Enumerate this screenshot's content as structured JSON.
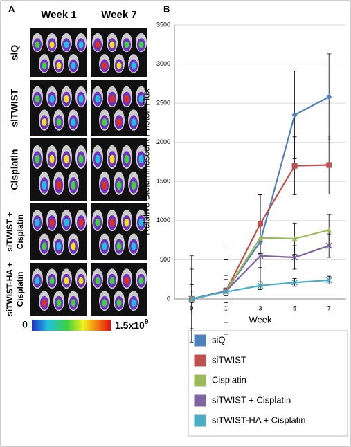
{
  "panel_a": {
    "panel_label": "A",
    "columns": [
      "Week 1",
      "Week 7"
    ],
    "rows": [
      {
        "label": "siQ"
      },
      {
        "label": "siTWIST"
      },
      {
        "label": "Cisplatin"
      },
      {
        "label": "siTWIST +",
        "label2": "Cisplatin"
      },
      {
        "label": "siTWIST-HA +",
        "label2": "Cisplatin"
      }
    ],
    "colorbar": {
      "min_label": "0",
      "max_label": "1.5x10",
      "max_exponent": "9"
    }
  },
  "chart_data": {
    "type": "line",
    "panel_label": "B",
    "x_label": "Week",
    "y_label": "Relative Bioluminescent Photon Flux",
    "categories": [
      "0",
      "1",
      "3",
      "5",
      "7"
    ],
    "ylim": [
      0,
      3500
    ],
    "yticks": [
      0,
      500,
      1000,
      1500,
      2000,
      2500,
      3000,
      3500
    ],
    "grid": true,
    "series": [
      {
        "name": "siQ",
        "color": "#4f81bd",
        "marker": "diamond",
        "values": [
          0,
          100,
          730,
          2350,
          2580
        ],
        "errors": [
          550,
          550,
          600,
          560,
          550
        ]
      },
      {
        "name": "siTWIST",
        "color": "#c0504d",
        "marker": "square",
        "values": [
          0,
          100,
          960,
          1700,
          1710
        ],
        "errors": [
          380,
          400,
          370,
          370,
          370
        ]
      },
      {
        "name": "Cisplatin",
        "color": "#9bbb59",
        "marker": "triangle",
        "values": [
          0,
          100,
          780,
          770,
          880
        ],
        "errors": [
          180,
          200,
          200,
          200,
          200
        ]
      },
      {
        "name": "siTWIST + Cisplatin",
        "color": "#8064a2",
        "marker": "cross",
        "values": [
          0,
          100,
          550,
          530,
          680
        ],
        "errors": [
          100,
          150,
          150,
          150,
          150
        ]
      },
      {
        "name": "siTWIST-HA + Cisplatin",
        "color": "#4bacc6",
        "marker": "cross",
        "values": [
          0,
          90,
          170,
          210,
          240
        ],
        "errors": [
          50,
          50,
          50,
          50,
          50
        ]
      }
    ]
  }
}
